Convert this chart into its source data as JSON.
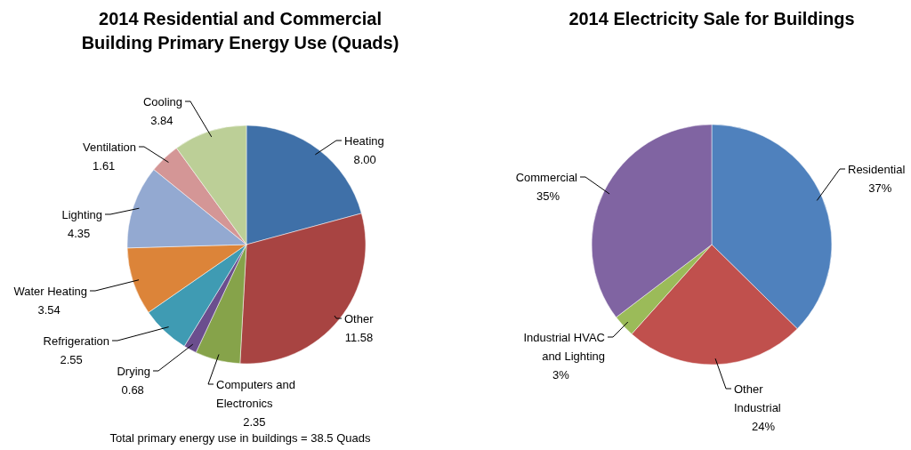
{
  "chart_data": [
    {
      "type": "pie",
      "title": "2014 Residential and Commercial Building Primary Energy Use (Quads)",
      "categories": [
        "Heating",
        "Other",
        "Computers and Electronics",
        "Drying",
        "Refrigeration",
        "Water Heating",
        "Lighting",
        "Ventilation",
        "Cooling"
      ],
      "values": [
        8.0,
        11.58,
        2.35,
        0.68,
        2.55,
        3.54,
        4.35,
        1.61,
        3.84
      ],
      "value_labels": [
        "8.00",
        "11.58",
        "2.35",
        "0.68",
        "2.55",
        "3.54",
        "4.35",
        "1.61",
        "3.84"
      ],
      "colors": [
        "#3f70a8",
        "#a84442",
        "#86a34a",
        "#6b4e8e",
        "#3f9bb3",
        "#dc8439",
        "#93a9d1",
        "#d49696",
        "#bccf97"
      ],
      "annotations": [
        "Total primary energy use in buildings = 38.5 Quads"
      ],
      "legend": false
    },
    {
      "type": "pie",
      "title": "2014 Electricity Sale for Buildings",
      "categories": [
        "Residential",
        "Other Industrial",
        "Industrial HVAC and Lighting",
        "Commercial"
      ],
      "values": [
        37,
        24,
        3,
        35
      ],
      "value_labels": [
        "37%",
        "24%",
        "3%",
        "35%"
      ],
      "colors": [
        "#4f81bd",
        "#c0504d",
        "#9bbb59",
        "#8064a2"
      ],
      "legend": false
    }
  ]
}
